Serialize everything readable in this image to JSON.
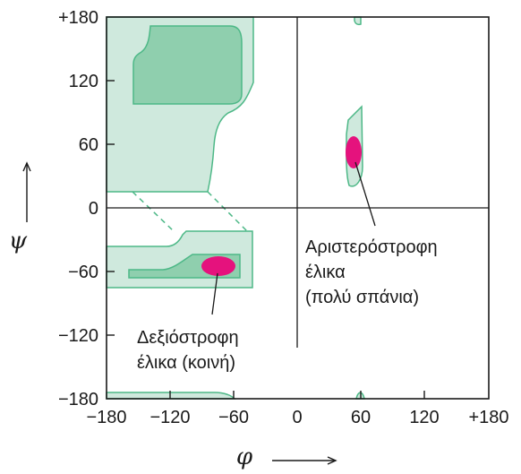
{
  "axes": {
    "x_symbol": "φ",
    "y_symbol": "ψ",
    "x_ticks": [
      "−180",
      "−120",
      "−60",
      "0",
      "60",
      "120",
      "+180"
    ],
    "y_ticks": [
      "+180",
      "120",
      "60",
      "0",
      "−60",
      "−120",
      "−180"
    ]
  },
  "annotations": {
    "right_helix": [
      "Δεξιόστροφη",
      "έλικα (κοινή)"
    ],
    "left_helix": [
      "Αριστερόστροφη",
      "έλικα",
      "(πολύ σπάνια)"
    ]
  },
  "colors": {
    "allowed_fill": "#cfe9dd",
    "core_fill": "#8fcfae",
    "region_stroke": "#4db887",
    "helix_marker": "#e5127d",
    "frame": "#1a1a1a"
  }
}
